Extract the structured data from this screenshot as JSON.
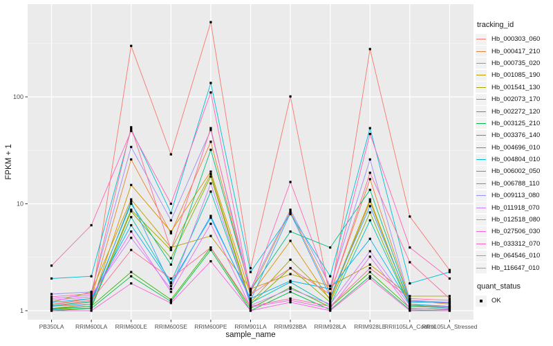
{
  "figure": {
    "background": "#FFFFFF",
    "panel_background": "#EBEBEB",
    "grid_major_color": "#FFFFFF",
    "grid_minor_color": "#F7F7F7",
    "tick_color": "#333333",
    "axis_text_color": "#4D4D4D",
    "point_color": "#000000"
  },
  "chart_data": {
    "type": "line",
    "title": "",
    "xlabel": "sample_name",
    "ylabel": "FPKM + 1",
    "y_scale": "log10",
    "y_ticks": [
      1,
      10,
      100
    ],
    "ylim": [
      1,
      690
    ],
    "grid": true,
    "legend_position": "right",
    "legend_title": "tracking_id",
    "point_marker": "filled-square",
    "quant_legend": {
      "title": "quant_status",
      "items": [
        "OK"
      ]
    },
    "categories": [
      "PB350LA",
      "RRIM600LA",
      "RRIM600LE",
      "RRIM600SE",
      "RRIM600PE",
      "RRIM901LA",
      "RRIM928BA",
      "RRIM928LA",
      "RRIM928LE",
      "RRII105LA_Control",
      "RRII105LA_Stressed"
    ],
    "series": [
      {
        "name": "Hb_000303_060",
        "color": "#F8766D",
        "values": [
          1.1,
          1.2,
          300,
          29,
          500,
          2.5,
          101,
          1.3,
          280,
          7.6,
          2.4
        ]
      },
      {
        "name": "Hb_000417_210",
        "color": "#EA8331",
        "values": [
          1.15,
          1.3,
          26,
          5.3,
          38,
          1.5,
          8.5,
          1.45,
          17,
          1.25,
          1.15
        ]
      },
      {
        "name": "Hb_000735_020",
        "color": "#D89000",
        "values": [
          1.05,
          1.15,
          15,
          5.5,
          20,
          1.4,
          4.5,
          1.25,
          10.5,
          1.15,
          1.05
        ]
      },
      {
        "name": "Hb_001085_190",
        "color": "#C09B00",
        "values": [
          1.2,
          1.5,
          11,
          3.9,
          5,
          1.6,
          2.2,
          1.7,
          2.7,
          1.37,
          1.37
        ]
      },
      {
        "name": "Hb_001541_130",
        "color": "#A3A500",
        "values": [
          1.05,
          1.1,
          8.8,
          3.7,
          19,
          1.2,
          3,
          1.3,
          11,
          1.12,
          1.08
        ]
      },
      {
        "name": "Hb_002073_170",
        "color": "#7CAE00",
        "values": [
          1.02,
          1.06,
          8.5,
          3.1,
          18,
          1.15,
          2.5,
          1.2,
          8.3,
          1.1,
          1.1
        ]
      },
      {
        "name": "Hb_002272_120",
        "color": "#39B600",
        "values": [
          1.05,
          1.1,
          2.3,
          1.27,
          3.9,
          1.05,
          1.65,
          1.08,
          2.3,
          1.06,
          1.02
        ]
      },
      {
        "name": "Hb_003125_210",
        "color": "#00BB4E",
        "values": [
          1,
          1.05,
          2.1,
          1.22,
          3.7,
          1,
          1.5,
          1.02,
          2.1,
          1.02,
          1
        ]
      },
      {
        "name": "Hb_003376_140",
        "color": "#00BF7D",
        "values": [
          1.12,
          1.22,
          10,
          2.7,
          32,
          1.55,
          5.5,
          3.9,
          13.5,
          1.22,
          1.18
        ]
      },
      {
        "name": "Hb_004696_010",
        "color": "#00C0AF",
        "values": [
          1.03,
          1.1,
          7.5,
          1.84,
          13,
          1.18,
          1.85,
          1.12,
          7,
          1.1,
          1.06
        ]
      },
      {
        "name": "Hb_004804_010",
        "color": "#00BCD8",
        "values": [
          2,
          2.1,
          50,
          8.2,
          135,
          2.3,
          8,
          2.1,
          51,
          1.8,
          2.3
        ]
      },
      {
        "name": "Hb_006002_050",
        "color": "#00B0F6",
        "values": [
          1.2,
          1.3,
          6.3,
          1.8,
          7.4,
          1.3,
          1.9,
          1.6,
          4.7,
          1.15,
          1.1
        ]
      },
      {
        "name": "Hb_006788_110",
        "color": "#35A2FF",
        "values": [
          1.1,
          1.15,
          10.5,
          1.7,
          7.7,
          1.25,
          8.2,
          1.35,
          9.5,
          1.2,
          1.2
        ]
      },
      {
        "name": "Hb_009113_080",
        "color": "#9590FF",
        "values": [
          1.43,
          1.5,
          34,
          7,
          49,
          1.6,
          8.8,
          1.7,
          26,
          1.25,
          1.2
        ]
      },
      {
        "name": "Hb_011918_070",
        "color": "#C77CFF",
        "values": [
          1.3,
          1.4,
          4.8,
          1.6,
          15.5,
          1.12,
          1.6,
          1.15,
          3.6,
          1.12,
          1.1
        ]
      },
      {
        "name": "Hb_012518_080",
        "color": "#E76BF3",
        "values": [
          1.25,
          1.35,
          5.5,
          1.5,
          6.5,
          1.08,
          1.25,
          1.05,
          3.2,
          1.05,
          1.04
        ]
      },
      {
        "name": "Hb_027506_030",
        "color": "#FA62DB",
        "values": [
          1,
          1,
          1.8,
          1.18,
          2.9,
          1,
          1.2,
          1,
          2,
          1,
          1
        ]
      },
      {
        "name": "Hb_033312_070",
        "color": "#FF62BC",
        "values": [
          2.64,
          6.3,
          48,
          10,
          110,
          1.5,
          16,
          1.6,
          45,
          3.9,
          2
        ]
      },
      {
        "name": "Hb_064546_010",
        "color": "#FF6A98",
        "values": [
          1.35,
          1.45,
          52,
          3.7,
          51,
          1.42,
          2.5,
          1.42,
          19.5,
          2.84,
          1.3
        ]
      },
      {
        "name": "Hb_116647_010",
        "color": "#FF6C91",
        "values": [
          1.15,
          1.25,
          3.7,
          2,
          3.9,
          1.1,
          1.3,
          1.1,
          2.5,
          1.3,
          1.25
        ]
      }
    ]
  }
}
